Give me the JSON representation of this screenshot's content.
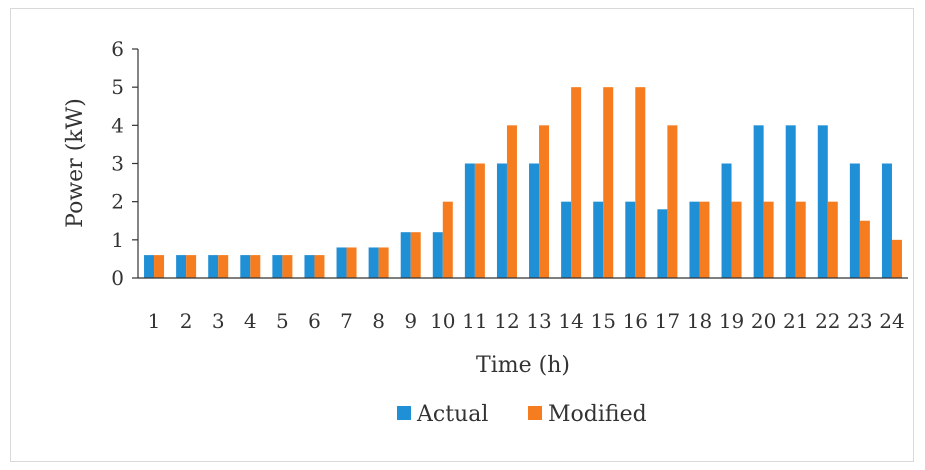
{
  "chart_data": {
    "type": "bar",
    "title": "",
    "xlabel": "Time (h)",
    "ylabel": "Power (kW)",
    "ylim": [
      0,
      6
    ],
    "yticks": [
      0,
      1,
      2,
      3,
      4,
      5,
      6
    ],
    "categories": [
      "1",
      "2",
      "3",
      "4",
      "5",
      "6",
      "7",
      "8",
      "9",
      "10",
      "11",
      "12",
      "13",
      "14",
      "15",
      "16",
      "17",
      "18",
      "19",
      "20",
      "21",
      "22",
      "23",
      "24"
    ],
    "series": [
      {
        "name": "Actual",
        "color": "#1f8fd6",
        "values": [
          0.6,
          0.6,
          0.6,
          0.6,
          0.6,
          0.6,
          0.8,
          0.8,
          1.2,
          1.2,
          3,
          3,
          3,
          2,
          2,
          2,
          1.8,
          2,
          3,
          4,
          4,
          4,
          3,
          3
        ]
      },
      {
        "name": "Modified",
        "color": "#f57d20",
        "values": [
          0.6,
          0.6,
          0.6,
          0.6,
          0.6,
          0.6,
          0.8,
          0.8,
          1.2,
          2,
          3,
          4,
          4,
          5,
          5,
          5,
          4,
          2,
          2,
          2,
          2,
          2,
          1.5,
          1
        ]
      }
    ],
    "legend": "bottom",
    "grid": false
  }
}
